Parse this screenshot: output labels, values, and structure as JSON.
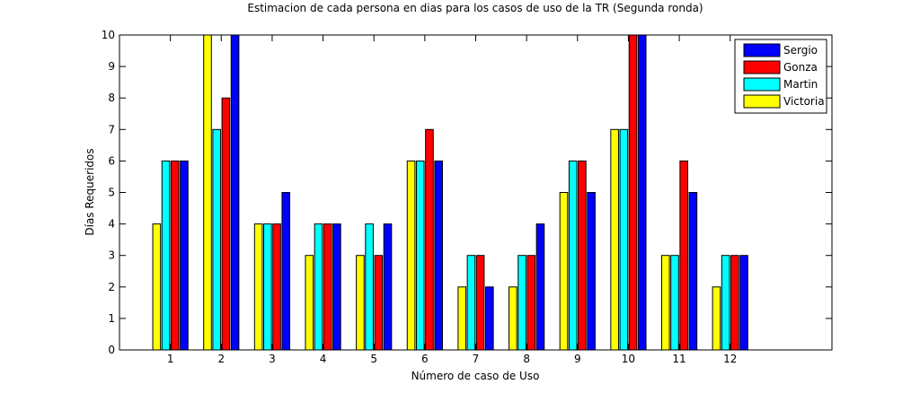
{
  "chart_data": {
    "type": "bar",
    "title": "Estimacion de cada persona en dias para los casos de uso de la TR (Segunda ronda)",
    "xlabel": "Número de caso de Uso",
    "ylabel": "Días Requeridos",
    "categories": [
      "1",
      "2",
      "3",
      "4",
      "5",
      "6",
      "7",
      "8",
      "9",
      "10",
      "11",
      "12"
    ],
    "xlim": [
      0,
      14
    ],
    "ylim": [
      0,
      10
    ],
    "yticks": [
      0,
      1,
      2,
      3,
      4,
      5,
      6,
      7,
      8,
      9,
      10
    ],
    "grid": false,
    "legend_position": "top-right",
    "series": [
      {
        "name": "Victoria",
        "color": "#ffff00",
        "values": [
          4,
          10,
          4,
          3,
          3,
          6,
          2,
          2,
          5,
          7,
          3,
          2
        ]
      },
      {
        "name": "Martin",
        "color": "#00ffff",
        "values": [
          6,
          7,
          4,
          4,
          4,
          6,
          3,
          3,
          6,
          7,
          3,
          3
        ]
      },
      {
        "name": "Gonza",
        "color": "#ff0000",
        "values": [
          6,
          8,
          4,
          4,
          3,
          7,
          3,
          3,
          6,
          10,
          6,
          3
        ]
      },
      {
        "name": "Sergio",
        "color": "#0000ff",
        "values": [
          6,
          10,
          5,
          4,
          4,
          6,
          2,
          4,
          5,
          10,
          5,
          3
        ]
      }
    ],
    "legend_order": [
      "Sergio",
      "Gonza",
      "Martin",
      "Victoria"
    ]
  }
}
